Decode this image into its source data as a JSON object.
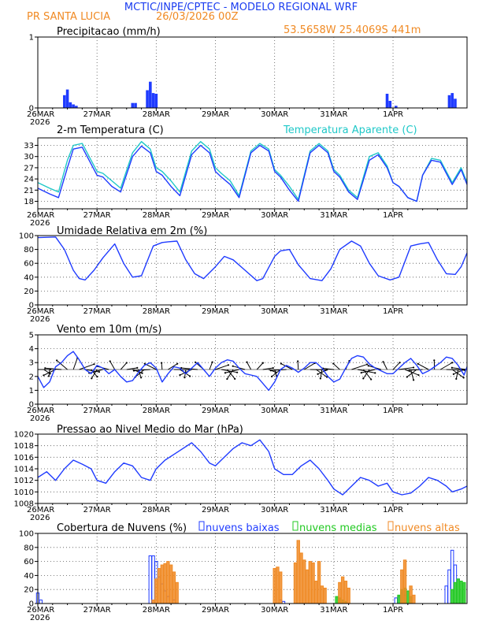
{
  "header": {
    "title": "MCTIC/INPE/CPTEC - MODELO REGIONAL WRF",
    "location": "PR SANTA LUCIA",
    "date": "26/03/2026 00Z",
    "coords": "53.5658W 25.4069S 441m"
  },
  "colors": {
    "blue": "#1f3bff",
    "orange": "#f08a24",
    "green": "#22c922",
    "cyan": "#1fc8c8",
    "header_blue": "#1a3cf0",
    "black": "#000000"
  },
  "chart_data": [
    {
      "type": "bar",
      "title": "Precipitacao (mm/h)",
      "x": [
        0.45,
        0.5,
        0.55,
        0.6,
        0.65,
        1.6,
        1.65,
        1.85,
        1.9,
        1.95,
        2.0,
        5.9,
        5.95,
        6.05,
        6.95,
        7.0,
        7.05
      ],
      "values": [
        0.18,
        0.26,
        0.08,
        0.05,
        0.03,
        0.07,
        0.07,
        0.25,
        0.37,
        0.21,
        0.2,
        0.2,
        0.1,
        0.03,
        0.18,
        0.21,
        0.13
      ],
      "ylim": [
        0,
        1
      ],
      "yticks": [
        "0",
        "1"
      ]
    },
    {
      "type": "line",
      "title": "2-m Temperatura (C)",
      "legend": "Temperatura Aparente (C)",
      "series": [
        {
          "name": "2-m Temperatura (C)",
          "x": [
            0,
            0.2,
            0.35,
            0.5,
            0.6,
            0.75,
            0.9,
            1.0,
            1.1,
            1.25,
            1.4,
            1.6,
            1.75,
            1.9,
            2.0,
            2.1,
            2.25,
            2.4,
            2.6,
            2.75,
            2.9,
            3.0,
            3.1,
            3.25,
            3.4,
            3.6,
            3.75,
            3.9,
            4.0,
            4.1,
            4.25,
            4.4,
            4.6,
            4.75,
            4.9,
            5.0,
            5.1,
            5.25,
            5.4,
            5.6,
            5.75,
            5.9,
            6.0,
            6.1,
            6.25,
            6.4,
            6.5,
            6.65,
            6.8,
            7.0,
            7.15,
            7.25
          ],
          "values": [
            21.5,
            20.0,
            19.0,
            27.0,
            32.0,
            32.5,
            28.0,
            25.0,
            24.5,
            22.0,
            20.5,
            30.0,
            32.8,
            31.0,
            26.0,
            25.0,
            22.0,
            19.5,
            30.5,
            33.0,
            31.0,
            26.0,
            24.5,
            22.5,
            19.0,
            31.0,
            33.0,
            31.5,
            26.0,
            24.5,
            21.0,
            18.0,
            31.0,
            33.0,
            31.0,
            26.0,
            24.5,
            20.5,
            18.5,
            29.0,
            30.5,
            27.0,
            23.0,
            22.0,
            19.0,
            18.0,
            25.0,
            29.0,
            28.5,
            22.5,
            26.5,
            22.5
          ]
        },
        {
          "name": "Temperatura Aparente (C)",
          "x": [
            0,
            0.2,
            0.35,
            0.5,
            0.6,
            0.75,
            0.9,
            1.0,
            1.1,
            1.25,
            1.4,
            1.6,
            1.75,
            1.9,
            2.0,
            2.1,
            2.25,
            2.4,
            2.6,
            2.75,
            2.9,
            3.0,
            3.1,
            3.25,
            3.4,
            3.6,
            3.75,
            3.9,
            4.0,
            4.1,
            4.25,
            4.4,
            4.6,
            4.75,
            4.9,
            5.0,
            5.1,
            5.25,
            5.4,
            5.6,
            5.75,
            5.9,
            6.0,
            6.1,
            6.25,
            6.4,
            6.5,
            6.65,
            6.8,
            7.0,
            7.15,
            7.25
          ],
          "values": [
            23.0,
            21.5,
            20.5,
            29.0,
            33.0,
            33.5,
            29.0,
            26.0,
            25.5,
            23.5,
            21.5,
            31.0,
            34.0,
            32.0,
            27.0,
            26.0,
            23.5,
            20.5,
            31.5,
            34.0,
            32.0,
            27.0,
            25.5,
            23.5,
            19.5,
            31.5,
            33.5,
            32.0,
            26.5,
            25.0,
            22.0,
            18.5,
            31.5,
            33.5,
            31.5,
            26.5,
            25.0,
            21.0,
            19.0,
            30.0,
            31.0,
            27.5,
            23.0,
            22.0,
            19.0,
            18.0,
            25.0,
            29.5,
            29.0,
            23.0,
            27.0,
            23.0
          ]
        }
      ],
      "ylim": [
        16,
        35
      ],
      "yticks": [
        "18",
        "21",
        "24",
        "27",
        "30",
        "33"
      ]
    },
    {
      "type": "line",
      "title": "Umidade Relativa em 2m (%)",
      "x": [
        0,
        0.3,
        0.45,
        0.6,
        0.7,
        0.8,
        0.95,
        1.1,
        1.3,
        1.45,
        1.6,
        1.75,
        1.95,
        2.1,
        2.2,
        2.35,
        2.5,
        2.65,
        2.8,
        3.0,
        3.15,
        3.3,
        3.5,
        3.7,
        3.8,
        4.0,
        4.1,
        4.25,
        4.4,
        4.6,
        4.8,
        4.95,
        5.1,
        5.3,
        5.45,
        5.6,
        5.75,
        5.95,
        6.1,
        6.3,
        6.45,
        6.6,
        6.75,
        6.9,
        7.05,
        7.15,
        7.25
      ],
      "values": [
        97,
        98,
        80,
        50,
        38,
        36,
        50,
        68,
        88,
        60,
        40,
        42,
        85,
        90,
        91,
        92,
        65,
        45,
        38,
        55,
        70,
        65,
        50,
        35,
        38,
        70,
        78,
        80,
        58,
        38,
        35,
        52,
        80,
        92,
        85,
        60,
        42,
        36,
        40,
        85,
        88,
        90,
        65,
        45,
        44,
        55,
        75
      ],
      "ylim": [
        0,
        100
      ],
      "yticks": [
        "0",
        "20",
        "40",
        "60",
        "80",
        "100"
      ]
    },
    {
      "type": "line",
      "title": "Vento em 10m (m/s)",
      "x": [
        0,
        0.1,
        0.2,
        0.3,
        0.4,
        0.5,
        0.6,
        0.7,
        0.8,
        0.9,
        1.0,
        1.1,
        1.2,
        1.3,
        1.4,
        1.5,
        1.6,
        1.7,
        1.8,
        1.9,
        2.0,
        2.1,
        2.2,
        2.3,
        2.4,
        2.5,
        2.6,
        2.7,
        2.8,
        2.9,
        3.0,
        3.1,
        3.2,
        3.3,
        3.4,
        3.5,
        3.6,
        3.7,
        3.8,
        3.9,
        4.0,
        4.1,
        4.2,
        4.3,
        4.4,
        4.5,
        4.6,
        4.7,
        4.8,
        4.9,
        5.0,
        5.1,
        5.2,
        5.3,
        5.4,
        5.5,
        5.6,
        5.7,
        5.8,
        5.9,
        6.0,
        6.1,
        6.2,
        6.3,
        6.4,
        6.5,
        6.6,
        6.7,
        6.8,
        6.9,
        7.0,
        7.1,
        7.2,
        7.25
      ],
      "values": [
        2.0,
        1.2,
        1.6,
        2.7,
        3.0,
        3.5,
        3.8,
        3.2,
        2.5,
        2.2,
        2.8,
        2.6,
        2.2,
        2.5,
        2.0,
        1.6,
        1.7,
        2.3,
        2.8,
        3.0,
        2.6,
        1.6,
        2.2,
        2.7,
        2.6,
        2.2,
        2.6,
        3.0,
        2.5,
        2.0,
        2.6,
        3.0,
        3.2,
        3.1,
        2.6,
        2.2,
        2.1,
        2.0,
        1.5,
        1.0,
        1.6,
        2.5,
        2.8,
        2.6,
        2.3,
        2.6,
        3.0,
        3.0,
        2.6,
        2.0,
        1.6,
        1.8,
        2.6,
        3.3,
        3.5,
        3.4,
        2.9,
        2.6,
        2.4,
        2.2,
        2.2,
        2.6,
        3.0,
        3.3,
        2.8,
        2.2,
        2.4,
        2.7,
        3.0,
        3.4,
        3.3,
        2.8,
        2.1,
        2.7
      ],
      "ylim": [
        0,
        5
      ],
      "yticks": [
        "0",
        "1",
        "2",
        "3",
        "4",
        "5"
      ],
      "barb_baseline": 2.5
    },
    {
      "type": "line",
      "title": "Pressao ao Nivel Medio do Mar (hPa)",
      "x": [
        0,
        0.15,
        0.3,
        0.45,
        0.6,
        0.75,
        0.9,
        1.0,
        1.15,
        1.3,
        1.45,
        1.6,
        1.75,
        1.9,
        2.0,
        2.15,
        2.3,
        2.45,
        2.6,
        2.75,
        2.9,
        3.0,
        3.15,
        3.3,
        3.45,
        3.6,
        3.75,
        3.9,
        4.0,
        4.15,
        4.3,
        4.45,
        4.6,
        4.75,
        4.9,
        5.0,
        5.15,
        5.3,
        5.45,
        5.6,
        5.75,
        5.9,
        6.0,
        6.15,
        6.3,
        6.45,
        6.6,
        6.75,
        6.9,
        7.0,
        7.15,
        7.25
      ],
      "values": [
        1012.5,
        1013.5,
        1012.0,
        1014.0,
        1015.5,
        1014.8,
        1014.0,
        1012.0,
        1011.5,
        1013.5,
        1015.0,
        1014.5,
        1012.5,
        1012.0,
        1014.0,
        1015.5,
        1016.5,
        1017.5,
        1018.5,
        1017.0,
        1015.0,
        1014.5,
        1016.0,
        1017.5,
        1018.5,
        1018.0,
        1019.0,
        1017.0,
        1014.0,
        1013.0,
        1013.0,
        1014.5,
        1015.5,
        1014.0,
        1012.0,
        1010.5,
        1009.5,
        1011.0,
        1012.5,
        1012.0,
        1011.0,
        1011.5,
        1010.0,
        1009.5,
        1009.8,
        1011.0,
        1012.5,
        1012.0,
        1011.0,
        1010.0,
        1010.5,
        1011.0
      ],
      "ylim": [
        1008,
        1020
      ],
      "yticks": [
        "1008",
        "1010",
        "1012",
        "1014",
        "1016",
        "1018",
        "1020"
      ]
    },
    {
      "type": "bar",
      "title": "Cobertura de Nuvens (%)",
      "legend": [
        "nuvens baixas",
        "nuvens medias",
        "nuvens altas"
      ],
      "series": [
        {
          "name": "nuvens baixas",
          "x": [
            0.0,
            0.05,
            1.9,
            1.95,
            2.0,
            2.05,
            2.1,
            2.15,
            2.2,
            2.3,
            4.1,
            4.15,
            6.05,
            6.1,
            6.15,
            6.2,
            6.9,
            6.95,
            7.0,
            7.05,
            7.1
          ],
          "values": [
            15,
            5,
            68,
            68,
            60,
            38,
            28,
            18,
            10,
            5,
            5,
            3,
            8,
            10,
            15,
            12,
            25,
            48,
            76,
            55,
            35
          ]
        },
        {
          "name": "nuvens medias",
          "x": [
            5.05,
            5.1,
            5.15,
            5.2,
            6.1,
            6.15,
            6.2,
            6.25,
            6.3,
            7.0,
            7.05,
            7.1,
            7.15,
            7.2
          ],
          "values": [
            10,
            8,
            5,
            3,
            12,
            20,
            22,
            18,
            10,
            20,
            30,
            35,
            32,
            30
          ]
        },
        {
          "name": "nuvens altas",
          "x": [
            1.95,
            2.0,
            2.05,
            2.1,
            2.15,
            2.2,
            2.25,
            2.3,
            2.35,
            4.0,
            4.05,
            4.1,
            4.35,
            4.4,
            4.45,
            4.5,
            4.55,
            4.6,
            4.65,
            4.7,
            4.75,
            4.8,
            4.85,
            5.1,
            5.15,
            5.2,
            5.25,
            6.15,
            6.2,
            6.3,
            6.35
          ],
          "values": [
            5,
            35,
            50,
            55,
            57,
            60,
            55,
            45,
            30,
            50,
            52,
            45,
            58,
            90,
            72,
            62,
            48,
            60,
            58,
            32,
            60,
            25,
            22,
            30,
            38,
            32,
            22,
            48,
            62,
            25,
            12
          ]
        }
      ],
      "ylim": [
        0,
        100
      ],
      "yticks": [
        "0",
        "20",
        "40",
        "60",
        "80",
        "100"
      ]
    }
  ],
  "time_axis": {
    "labels": [
      "26MAR",
      "27MAR",
      "28MAR",
      "29MAR",
      "30MAR",
      "31MAR",
      "1APR"
    ],
    "year": "2026",
    "range": [
      0,
      7.25
    ]
  }
}
